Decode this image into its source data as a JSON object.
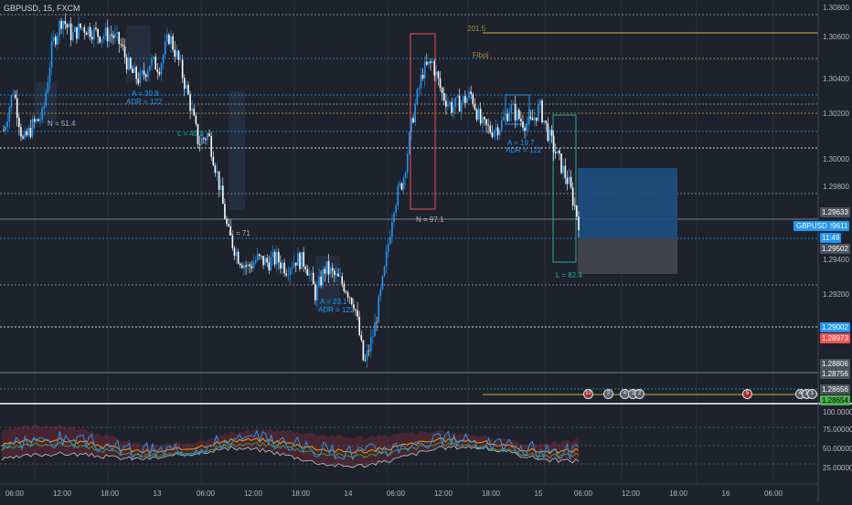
{
  "header": {
    "title": "GBPUSD, 15, FXCM"
  },
  "symbol_tag": "GBPUSD",
  "price_axis": {
    "ticks": [
      "1.30800",
      "1.30600",
      "1.30400",
      "1.30200",
      "1.30000",
      "1.29800",
      "1.29400",
      "1.29200",
      "1.28600"
    ],
    "tags": [
      {
        "text": "1.29633",
        "style": "grey"
      },
      {
        "text": "1.29611",
        "style": "blue"
      },
      {
        "text": "11:49",
        "style": "blue"
      },
      {
        "text": "1.29502",
        "style": "grey"
      },
      {
        "text": "1.29002",
        "style": "blue"
      },
      {
        "text": "1.28973",
        "style": "red"
      },
      {
        "text": "1.28806",
        "style": "grey"
      },
      {
        "text": "1.28756",
        "style": "grey"
      },
      {
        "text": "1.28656",
        "style": "grey"
      },
      {
        "text": "1.28654",
        "style": "green"
      }
    ]
  },
  "indicator_axis": {
    "ticks": [
      "100.00000",
      "75.00000",
      "50.00000",
      "25.00000"
    ]
  },
  "time_axis": {
    "labels": [
      "06:00",
      "12:00",
      "18:00",
      "13",
      "06:00",
      "12:00",
      "18:00",
      "14",
      "06:00",
      "12:00",
      "18:00",
      "15",
      "06:00",
      "12:00",
      "18:00",
      "16",
      "06:00"
    ]
  },
  "annotations": [
    {
      "text": "A = 30.9",
      "style": "blue"
    },
    {
      "text": "ADR = 122",
      "style": "blue"
    },
    {
      "text": "N = 51.4",
      "style": "grey"
    },
    {
      "text": "L = 49.9",
      "style": "green"
    },
    {
      "text": "N = 71",
      "style": "grey"
    },
    {
      "text": "A = 23.1",
      "style": "blue"
    },
    {
      "text": "ADR = 122",
      "style": "blue"
    },
    {
      "text": "N = 97.1",
      "style": "grey"
    },
    {
      "text": "A = 19.7",
      "style": "blue"
    },
    {
      "text": "ADR = 122",
      "style": "blue"
    },
    {
      "text": "L = 82.4",
      "style": "green"
    },
    {
      "text": "201.5",
      "style": "gold"
    },
    {
      "text": "Fiboj",
      "style": "gold"
    }
  ],
  "event_markers": [
    "10",
    "2",
    "4",
    "2",
    "2",
    "5",
    "4",
    "1",
    "1"
  ],
  "colors": {
    "background": "#1e222d",
    "up_candle": "#2196f3",
    "down_candle": "#ffffff",
    "blue_tag": "#2196f3",
    "red_tag": "#ef5350",
    "green_tag": "#4caf50",
    "grey_tag": "#4c525e",
    "gold_line": "#c8b732",
    "red_box": "#ef5350",
    "green_box": "#26a69a",
    "position_profit": "#1e4f80",
    "position_loss": "#434651"
  },
  "chart_data": {
    "type": "candlestick",
    "symbol": "GBPUSD",
    "timeframe": "15",
    "source": "FXCM",
    "y_range": [
      1.286,
      1.3085
    ],
    "close_path": [
      1.3012,
      1.3035,
      1.3005,
      1.3015,
      1.302,
      1.306,
      1.3075,
      1.3065,
      1.307,
      1.3068,
      1.3065,
      1.3066,
      1.306,
      1.3045,
      1.304,
      1.305,
      1.3048,
      1.3065,
      1.305,
      1.303,
      1.3005,
      1.301,
      1.2985,
      1.2955,
      1.2942,
      1.2935,
      1.294,
      1.2938,
      1.294,
      1.2935,
      1.294,
      1.2938,
      1.292,
      1.2935,
      1.293,
      1.2925,
      1.2915,
      1.288,
      1.29,
      1.293,
      1.297,
      1.2985,
      1.302,
      1.3045,
      1.305,
      1.3032,
      1.3025,
      1.3028,
      1.3032,
      1.3015,
      1.3012,
      1.3015,
      1.3025,
      1.3018,
      1.3015,
      1.3025,
      1.3008,
      1.2995,
      1.2982,
      1.2961
    ],
    "last_price": 1.29611
  }
}
